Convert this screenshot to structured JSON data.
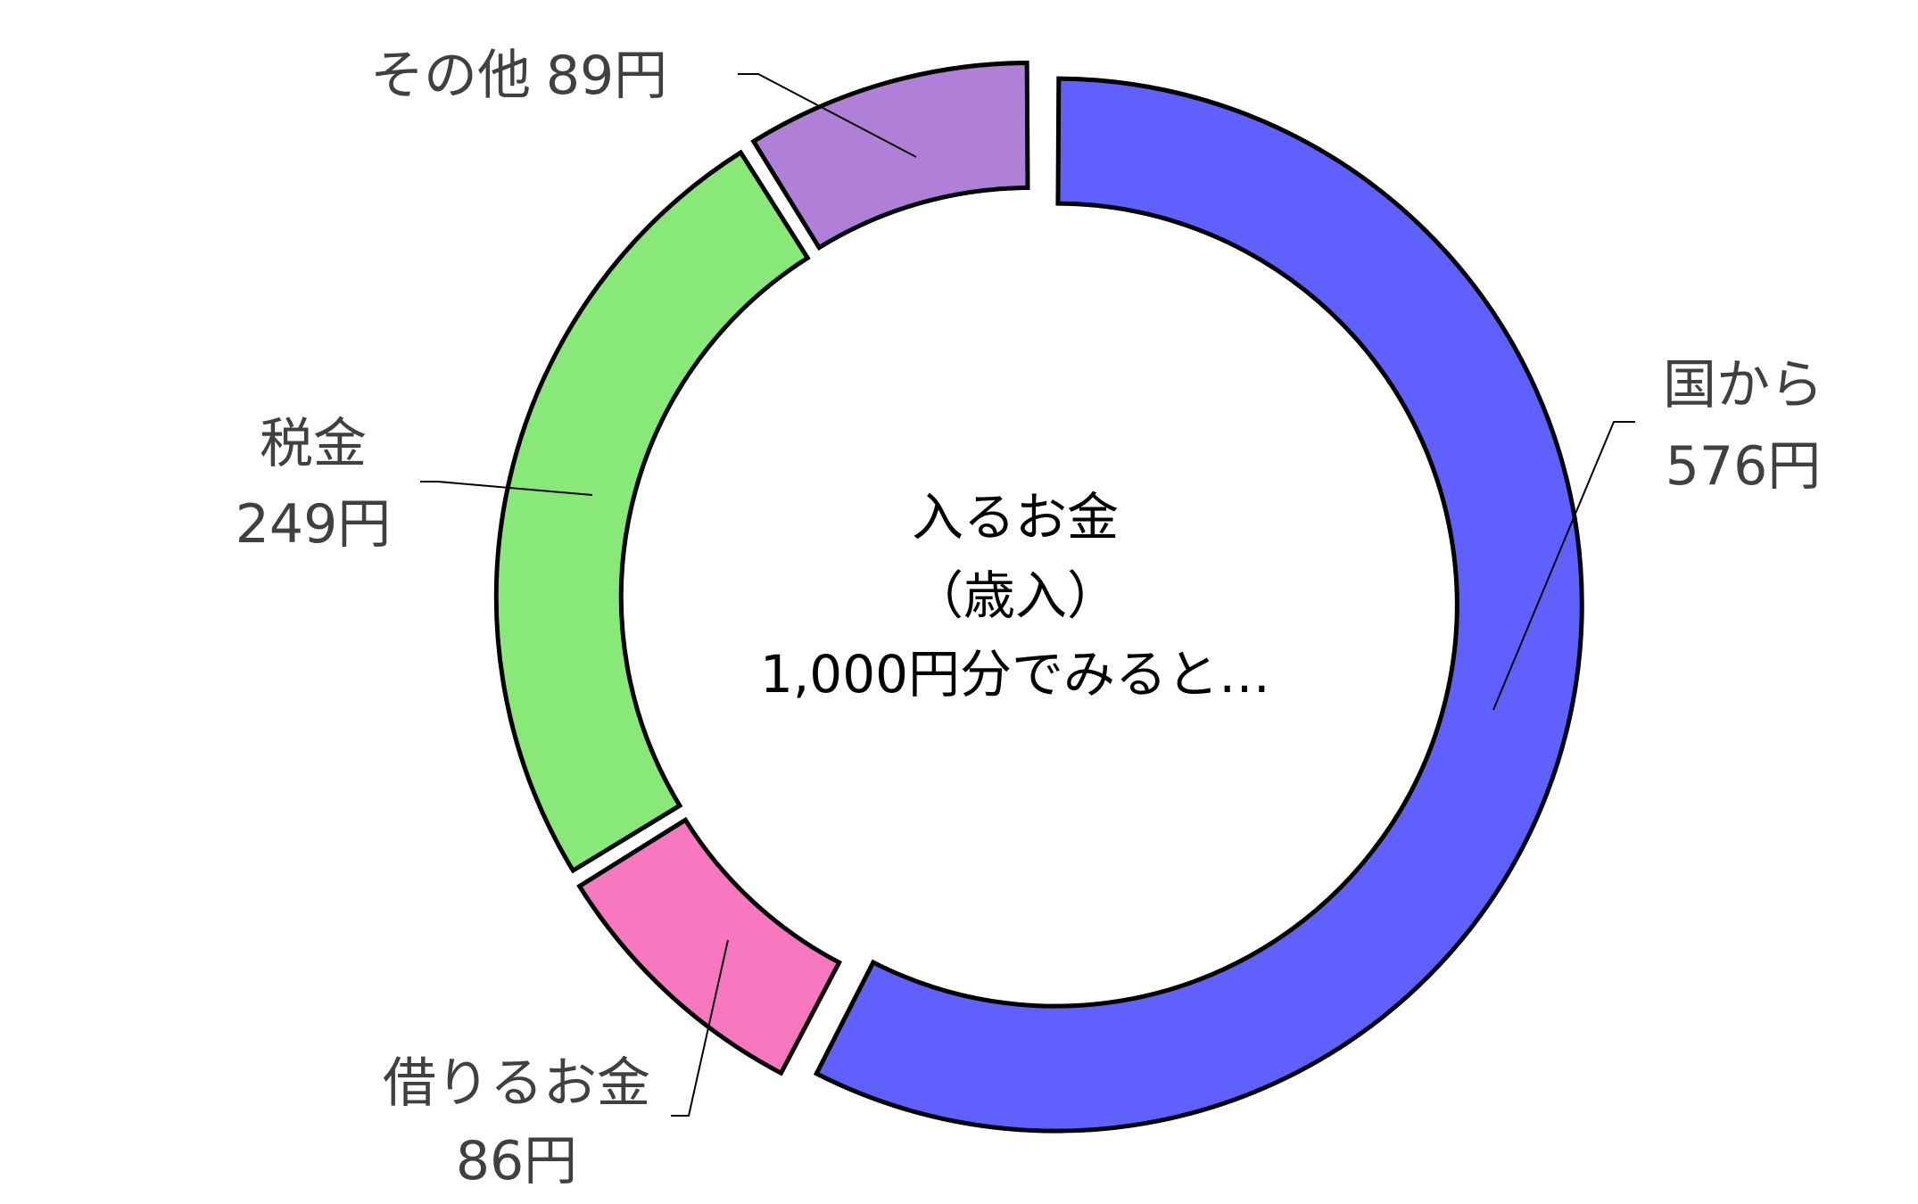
{
  "chart_data": {
    "type": "pie",
    "style": "donut",
    "center_text": [
      "入るお金",
      "（歳入）",
      "1,000円分でみると…"
    ],
    "unit": "円",
    "slices": [
      {
        "label": "国から",
        "value": 576,
        "value_text": "576円",
        "color": "#6060FF"
      },
      {
        "label": "借りるお金",
        "value": 86,
        "value_text": "86円",
        "color": "#F878C0"
      },
      {
        "label": "税金",
        "value": 249,
        "value_text": "249円",
        "color": "#88E878"
      },
      {
        "label": "その他",
        "value": 89,
        "value_text": "89円",
        "color": "#B080D8"
      }
    ],
    "legend": "none"
  }
}
